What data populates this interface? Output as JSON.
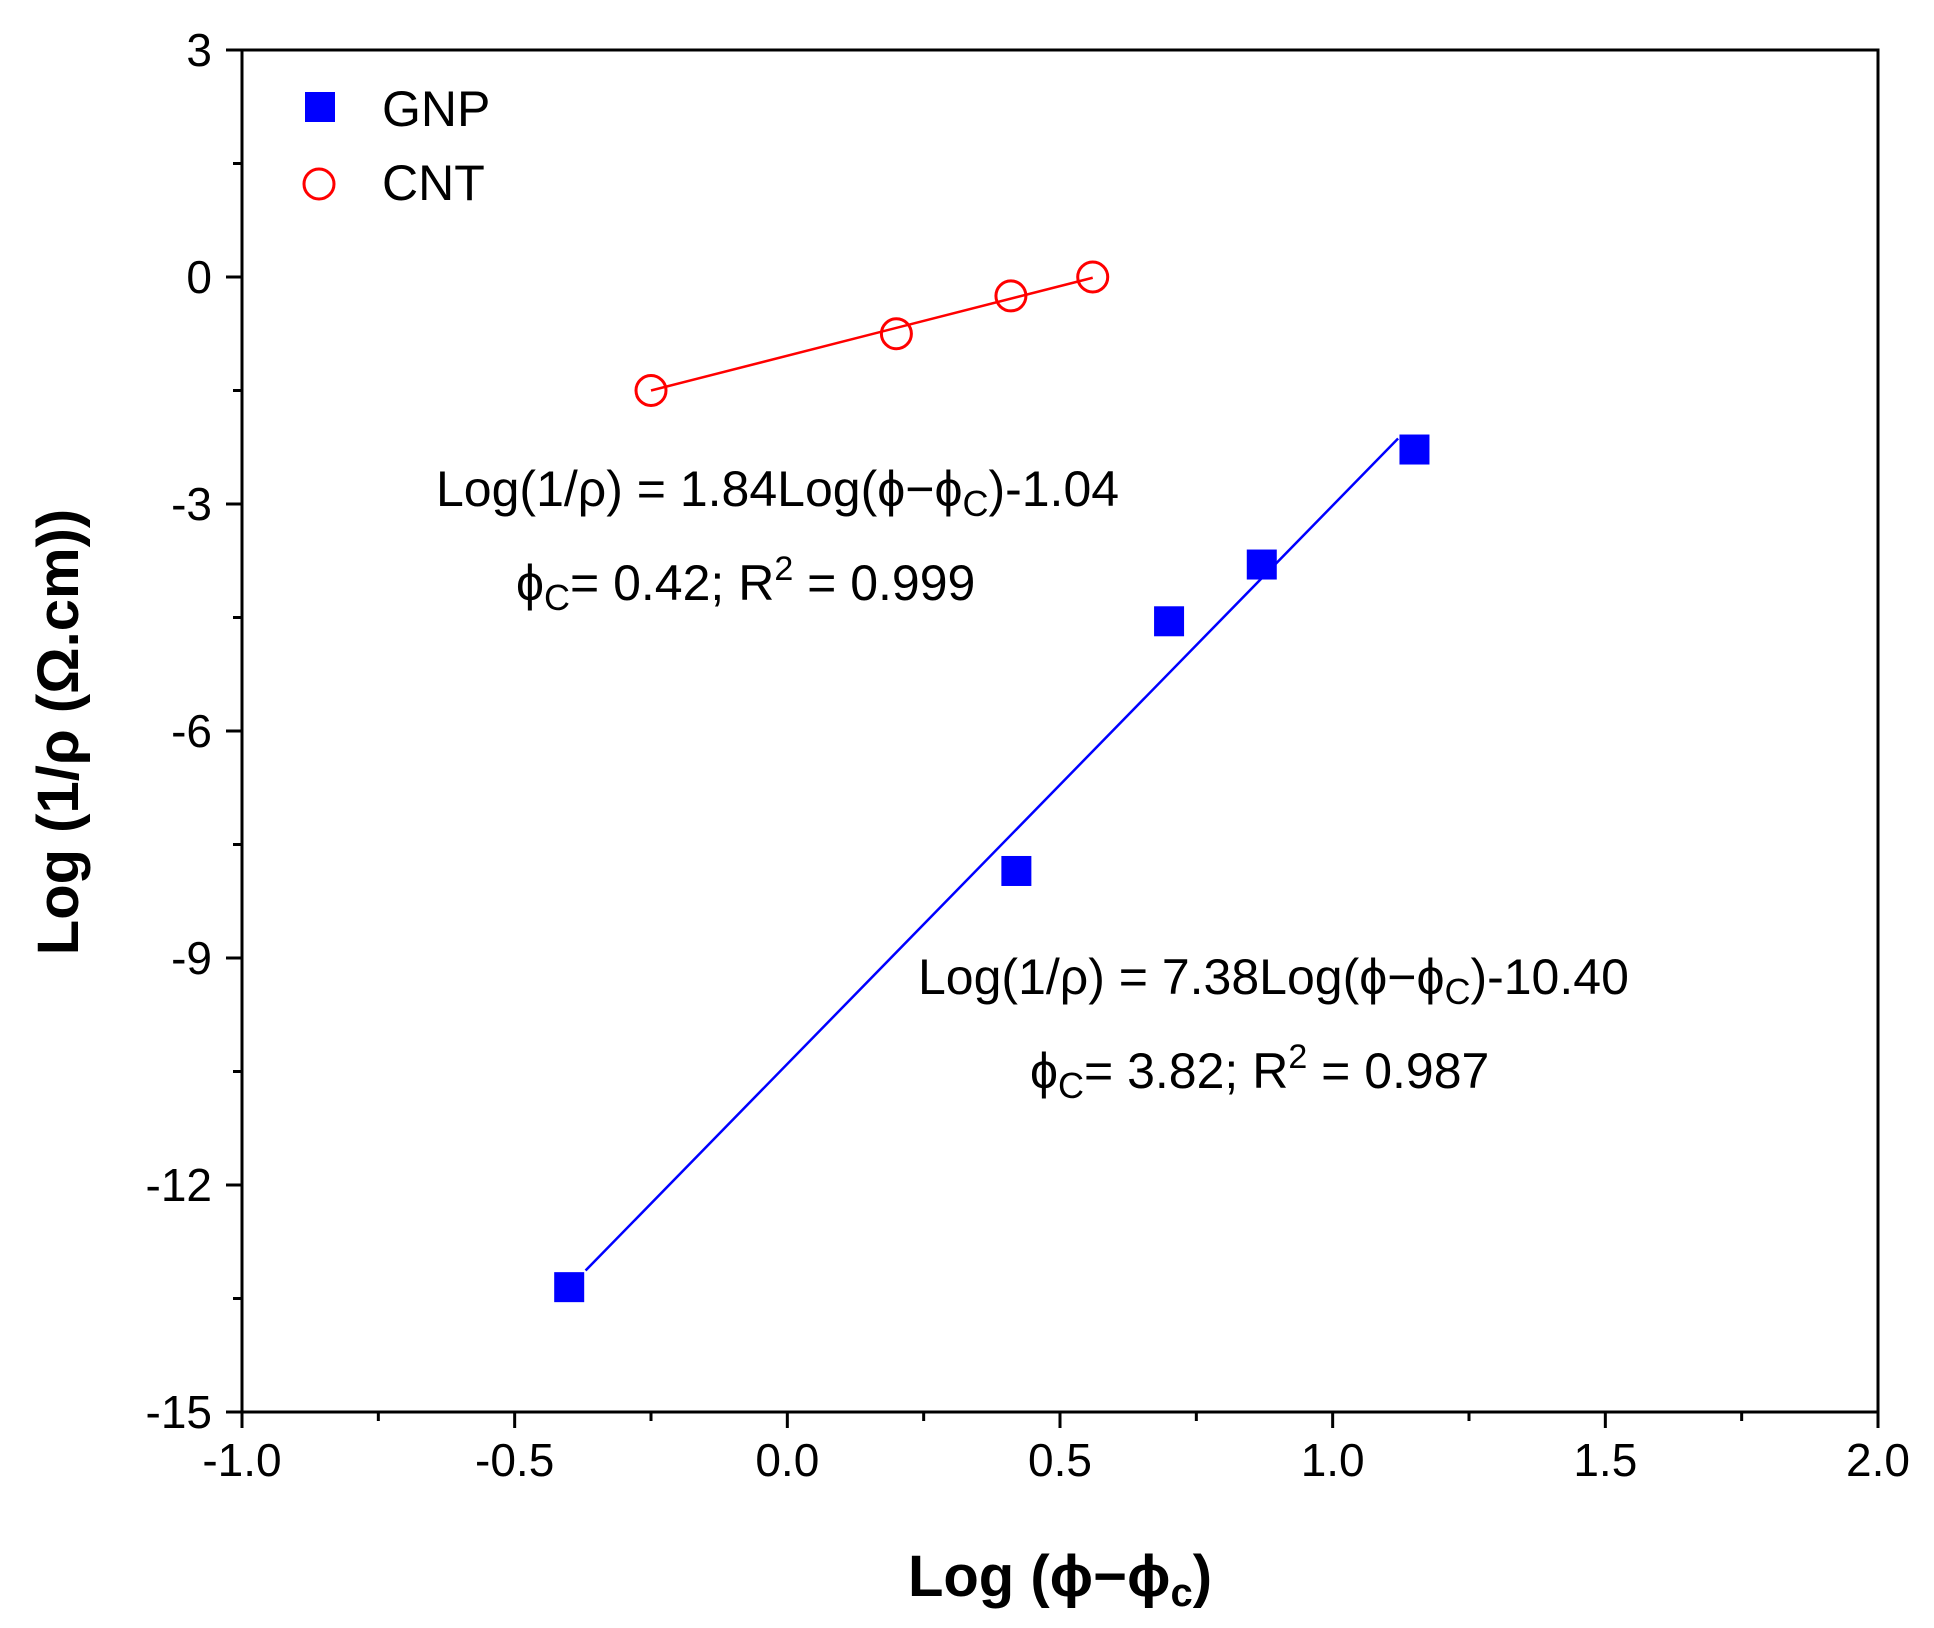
{
  "chart_data": {
    "type": "scatter",
    "title": "",
    "xlabel": "Log (ϕ−ϕc)",
    "ylabel": "Log (1/ρ (Ω.cm))",
    "xlim": [
      -1.0,
      2.0
    ],
    "ylim": [
      -15,
      3
    ],
    "x_ticks": [
      -1.0,
      -0.5,
      0.0,
      0.5,
      1.0,
      1.5,
      2.0
    ],
    "x_tick_labels": [
      "-1.0",
      "-0.5",
      "0.0",
      "0.5",
      "1.0",
      "1.5",
      "2.0"
    ],
    "x_minor_step": 0.25,
    "y_ticks": [
      3,
      0,
      -3,
      -6,
      -9,
      -12,
      -15
    ],
    "y_tick_labels": [
      "3",
      "0",
      "-3",
      "-6",
      "-9",
      "-12",
      "-15"
    ],
    "y_minor_step": 1.5,
    "grid": false,
    "legend_position": "top-left",
    "series": [
      {
        "name": "GNP",
        "marker": "filled-square",
        "color": "#0000ff",
        "x": [
          -0.4,
          0.42,
          0.7,
          0.87,
          1.15
        ],
        "y": [
          -13.35,
          -7.85,
          -4.55,
          -3.8,
          -2.28
        ],
        "fit": {
          "slope": 7.38,
          "intercept": -10.4,
          "x_range": [
            -0.37,
            1.12
          ]
        }
      },
      {
        "name": "CNT",
        "marker": "open-circle",
        "color": "#ff0000",
        "x": [
          -0.25,
          0.2,
          0.41,
          0.56
        ],
        "y": [
          -1.5,
          -0.75,
          -0.25,
          0.0
        ],
        "fit": {
          "slope": 1.84,
          "intercept": -1.04,
          "x_range": [
            -0.25,
            0.56
          ]
        }
      }
    ],
    "annotations": [
      {
        "id": "cnt",
        "line1": {
          "prefix": "Log(1/ρ) = 1.84Log(ϕ−ϕ",
          "sub": "C",
          "suffix": ")-1.04"
        },
        "line2": {
          "phi": "ϕ",
          "sub": "C",
          "mid": "= 0.42; R",
          "sup": "2",
          "suffix": " = 0.999"
        }
      },
      {
        "id": "gnp",
        "line1": {
          "prefix": "Log(1/ρ) = 7.38Log(ϕ−ϕ",
          "sub": "C",
          "suffix": ")-10.40"
        },
        "line2": {
          "phi": "ϕ",
          "sub": "C",
          "mid": "= 3.82; R",
          "sup": "2",
          "suffix": " = 0.987"
        }
      }
    ],
    "axis_title_parts": {
      "x": {
        "main": "Log (ϕ−ϕ",
        "sub": "c",
        "close": ")"
      }
    }
  }
}
